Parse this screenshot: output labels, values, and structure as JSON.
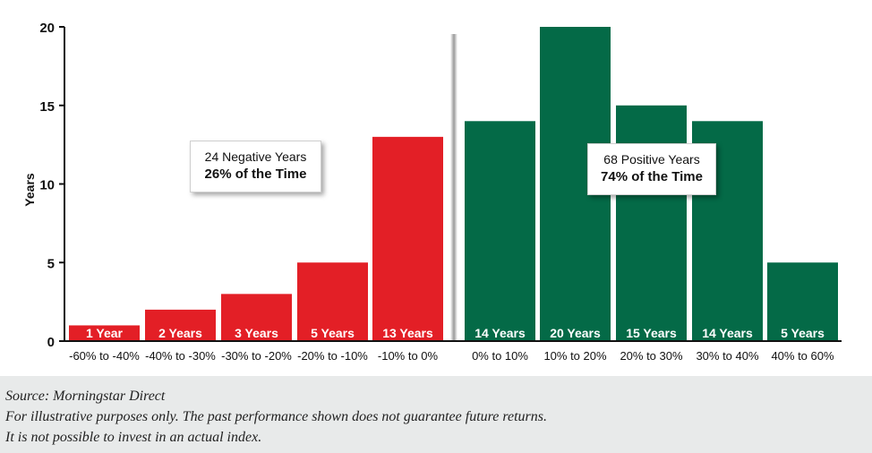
{
  "chart_data": {
    "type": "bar",
    "ylabel": "Years",
    "ylim": [
      0,
      20
    ],
    "yticks": [
      0,
      5,
      10,
      15,
      20
    ],
    "categories": [
      "-60% to -40%",
      "-40% to -30%",
      "-30% to -20%",
      "-20% to -10%",
      "-10% to 0%",
      "0% to 10%",
      "10% to 20%",
      "20% to 30%",
      "30% to 40%",
      "40% to 60%"
    ],
    "values": [
      1,
      2,
      3,
      5,
      13,
      14,
      20,
      15,
      14,
      5
    ],
    "bar_labels": [
      "1 Year",
      "2 Years",
      "3 Years",
      "5 Years",
      "13 Years",
      "14 Years",
      "20 Years",
      "15 Years",
      "14 Years",
      "5 Years"
    ],
    "colors": {
      "negative": "#e31f26",
      "positive": "#046a47"
    },
    "annotations": {
      "negative": {
        "line1": "24 Negative Years",
        "line2": "26% of the Time"
      },
      "positive": {
        "line1": "68 Positive Years",
        "line2": "74% of the Time"
      }
    }
  },
  "notes": {
    "source": "Source: Morningstar Direct",
    "line2": "For illustrative purposes only. The past performance shown does not guarantee future returns.",
    "line3": "It is not possible to invest in an actual index."
  }
}
